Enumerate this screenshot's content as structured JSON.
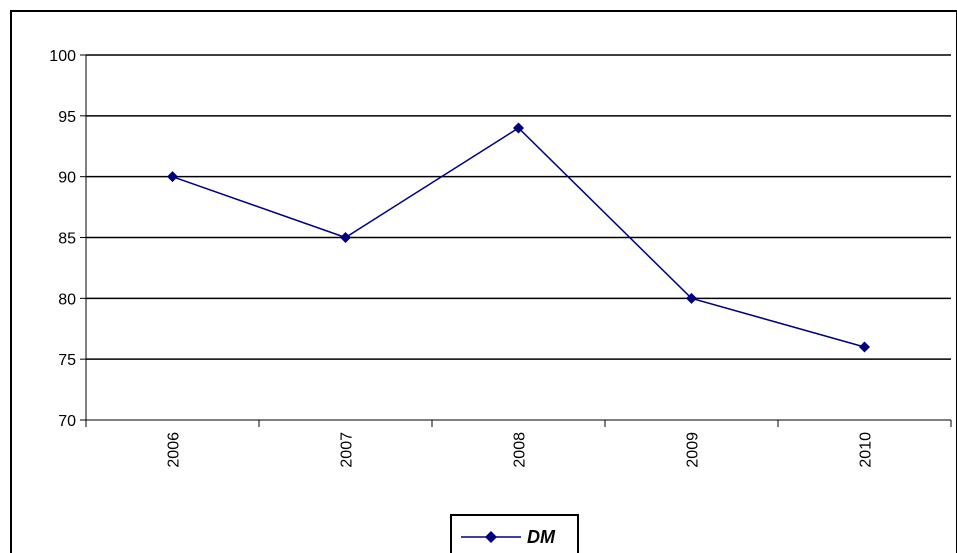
{
  "chart_data": {
    "type": "line",
    "title": "",
    "xlabel": "",
    "ylabel": "",
    "categories": [
      "2006",
      "2007",
      "2008",
      "2009",
      "2010"
    ],
    "series": [
      {
        "name": "DM",
        "values": [
          90,
          85,
          94,
          80,
          76
        ],
        "color": "#000080",
        "marker": "diamond"
      }
    ],
    "ylim": [
      70,
      100
    ],
    "yticks": [
      70,
      75,
      80,
      85,
      90,
      95,
      100
    ],
    "y_gridlines": true,
    "x_tick_label_rotation": "vertical",
    "legend_position": "bottom-center"
  }
}
